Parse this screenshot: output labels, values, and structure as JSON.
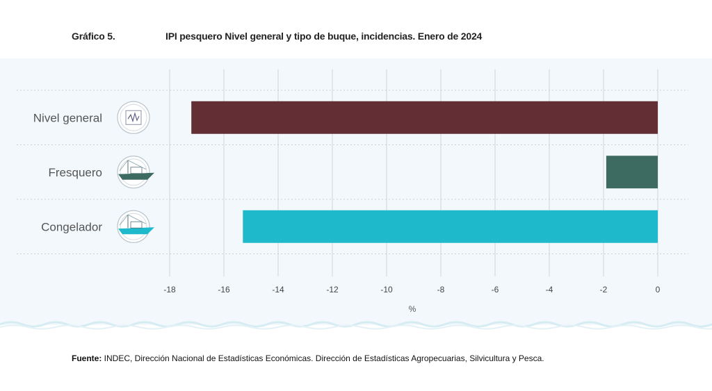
{
  "header": {
    "fig_number": "Gráfico 5.",
    "title": "IPI pesquero Nivel general y tipo de buque, incidencias. Enero de 2024"
  },
  "source": {
    "label": "Fuente:",
    "text": " INDEC, Dirección Nacional de Estadísticas Económicas. Dirección de Estadísticas Agropecuarias, Silvicultura y Pesca."
  },
  "chart_data": {
    "type": "bar",
    "orientation": "horizontal",
    "categories": [
      "Nivel general",
      "Fresquero",
      "Congelador"
    ],
    "values": [
      -17.2,
      -1.9,
      -15.3
    ],
    "colors": [
      "#632f35",
      "#3e6b61",
      "#1fb9cc"
    ],
    "icons": [
      "line-chart-icon",
      "fishing-boat-icon",
      "fishing-boat-icon"
    ],
    "xlabel": "%",
    "xlim": [
      -18,
      0
    ],
    "ticks": [
      -18,
      -16,
      -14,
      -12,
      -10,
      -8,
      -6,
      -4,
      -2,
      0
    ],
    "grid": true
  }
}
